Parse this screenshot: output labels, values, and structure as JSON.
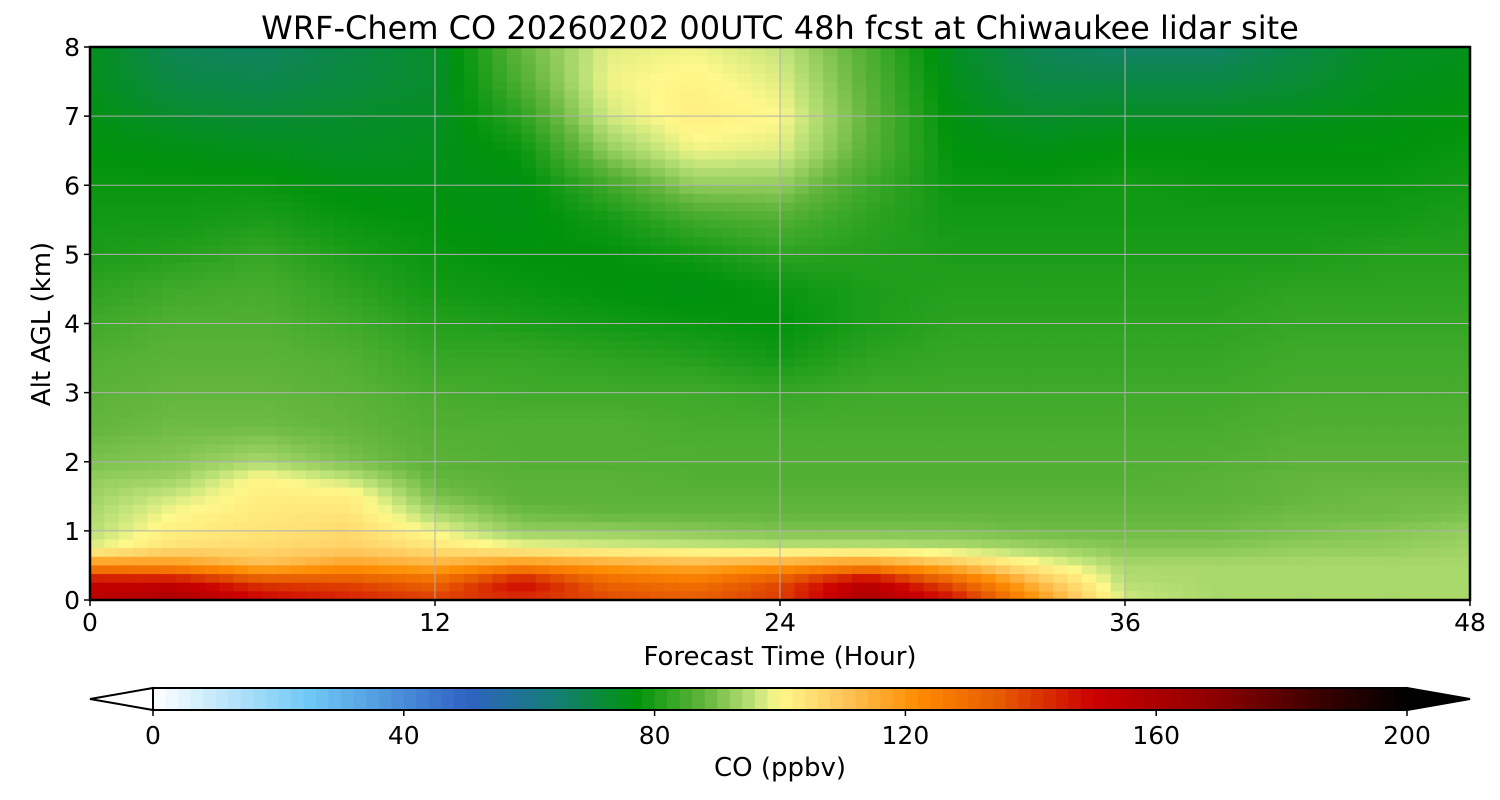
{
  "chart_data": {
    "type": "heatmap",
    "title": "WRF-Chem CO  20260202 00UTC 48h fcst at Chiwaukee lidar site",
    "xlabel": "Forecast Time (Hour)",
    "ylabel": "Alt AGL (km)",
    "xlim": [
      0,
      48
    ],
    "ylim": [
      0,
      8
    ],
    "xticks": [
      "0",
      "12",
      "24",
      "36",
      "48"
    ],
    "yticks": [
      "0",
      "1",
      "2",
      "3",
      "4",
      "5",
      "6",
      "7",
      "8"
    ],
    "grid": true,
    "colorbar": {
      "label": "CO  (ppbv)",
      "orientation": "horizontal",
      "placement": "bottom",
      "range": [
        0,
        200
      ],
      "ticks": [
        "0",
        "40",
        "80",
        "120",
        "160",
        "200"
      ],
      "extend": "both",
      "stops": [
        {
          "v": 0,
          "c": "#ffffff"
        },
        {
          "v": 25,
          "c": "#6ec8f5"
        },
        {
          "v": 50,
          "c": "#2f63c4"
        },
        {
          "v": 65,
          "c": "#13806f"
        },
        {
          "v": 77,
          "c": "#00930b"
        },
        {
          "v": 88,
          "c": "#63b63c"
        },
        {
          "v": 96,
          "c": "#c1e47a"
        },
        {
          "v": 100,
          "c": "#fff88a"
        },
        {
          "v": 110,
          "c": "#ffc65b"
        },
        {
          "v": 122,
          "c": "#ff8c00"
        },
        {
          "v": 135,
          "c": "#e65a00"
        },
        {
          "v": 150,
          "c": "#cc0000"
        },
        {
          "v": 170,
          "c": "#8b0000"
        },
        {
          "v": 185,
          "c": "#400000"
        },
        {
          "v": 200,
          "c": "#000000"
        }
      ]
    },
    "hours": [
      0,
      3,
      6,
      9,
      12,
      15,
      18,
      21,
      24,
      27,
      30,
      33,
      36,
      39,
      42,
      45,
      48
    ],
    "altitudes_km": [
      0,
      0.25,
      0.5,
      0.75,
      1,
      1.25,
      1.5,
      1.75,
      2,
      2.5,
      3,
      3.5,
      4,
      4.5,
      5,
      5.5,
      6,
      6.5,
      7,
      7.5,
      8
    ],
    "values_ppbv": [
      [
        155,
        160,
        150,
        145,
        140,
        142,
        138,
        135,
        140,
        160,
        148,
        120,
        97,
        94,
        94,
        94,
        94
      ],
      [
        152,
        152,
        140,
        138,
        132,
        150,
        132,
        128,
        138,
        156,
        135,
        112,
        95,
        94,
        94,
        94,
        94
      ],
      [
        122,
        120,
        112,
        118,
        115,
        122,
        118,
        115,
        118,
        122,
        112,
        101,
        94,
        94,
        94,
        94,
        94
      ],
      [
        98,
        105,
        106,
        108,
        104,
        100,
        98,
        97,
        96,
        96,
        95,
        93,
        91,
        91,
        92,
        92,
        93
      ],
      [
        95,
        102,
        104,
        106,
        99,
        92,
        92,
        91,
        90,
        90,
        90,
        89,
        89,
        89,
        90,
        91,
        92
      ],
      [
        94,
        100,
        103,
        104,
        94,
        89,
        88,
        88,
        88,
        88,
        88,
        88,
        88,
        88,
        89,
        89,
        90
      ],
      [
        93,
        97,
        102,
        102,
        90,
        87,
        87,
        87,
        87,
        87,
        87,
        87,
        87,
        87,
        88,
        89,
        89
      ],
      [
        92,
        93,
        101,
        96,
        88,
        87,
        87,
        86,
        86,
        86,
        86,
        86,
        86,
        87,
        88,
        88,
        88
      ],
      [
        90,
        91,
        94,
        90,
        87,
        86,
        86,
        86,
        86,
        86,
        86,
        86,
        86,
        86,
        87,
        87,
        87
      ],
      [
        88,
        89,
        89,
        88,
        86,
        86,
        86,
        85,
        85,
        85,
        85,
        85,
        85,
        85,
        86,
        86,
        86
      ],
      [
        87,
        88,
        88,
        87,
        85,
        84,
        84,
        84,
        83,
        84,
        84,
        84,
        84,
        84,
        85,
        85,
        85
      ],
      [
        86,
        87,
        87,
        86,
        83,
        83,
        82,
        81,
        79,
        82,
        83,
        83,
        83,
        83,
        84,
        84,
        84
      ],
      [
        84,
        86,
        86,
        84,
        81,
        80,
        79,
        78,
        77,
        80,
        82,
        82,
        82,
        82,
        83,
        83,
        83
      ],
      [
        82,
        84,
        85,
        82,
        79,
        78,
        77,
        76,
        78,
        80,
        81,
        81,
        81,
        81,
        82,
        82,
        82
      ],
      [
        80,
        81,
        83,
        80,
        78,
        77,
        77,
        79,
        82,
        81,
        80,
        80,
        80,
        80,
        80,
        81,
        81
      ],
      [
        79,
        79,
        80,
        78,
        77,
        76,
        79,
        84,
        86,
        82,
        79,
        79,
        79,
        79,
        79,
        79,
        80
      ],
      [
        78,
        78,
        78,
        76,
        76,
        76,
        84,
        92,
        92,
        84,
        78,
        78,
        79,
        78,
        78,
        78,
        79
      ],
      [
        77,
        76,
        75,
        74,
        75,
        78,
        92,
        99,
        98,
        87,
        77,
        76,
        77,
        77,
        77,
        77,
        78
      ],
      [
        76,
        73,
        72,
        73,
        74,
        82,
        97,
        102,
        100,
        88,
        76,
        73,
        74,
        74,
        75,
        76,
        77
      ],
      [
        75,
        70,
        69,
        71,
        73,
        86,
        99,
        101,
        98,
        87,
        75,
        70,
        70,
        70,
        72,
        75,
        76
      ],
      [
        75,
        68,
        67,
        70,
        73,
        88,
        98,
        99,
        96,
        86,
        74,
        68,
        66,
        66,
        70,
        74,
        75
      ]
    ]
  }
}
